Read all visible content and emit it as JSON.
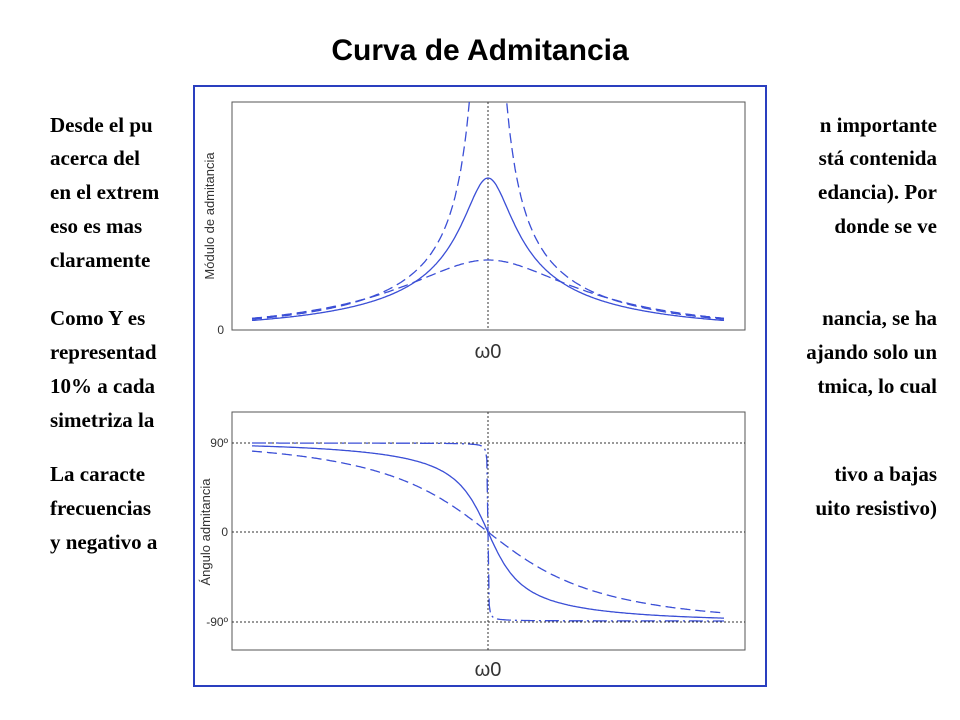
{
  "title": "Curva de Admitancia",
  "paragraphs": [
    {
      "lines": [
        {
          "left": "Desde el pu",
          "right": "n importante"
        },
        {
          "left": "acerca del",
          "right": "stá contenida"
        },
        {
          "left": "en el extrem",
          "right": "edancia). Por"
        },
        {
          "left": "eso es mas",
          "right": "donde se ve"
        },
        {
          "left": "claramente",
          "right": ""
        }
      ]
    },
    {
      "lines": [
        {
          "left": "Como Y es",
          "right": "nancia, se ha"
        },
        {
          "left": "representad",
          "right": "ajando solo un"
        },
        {
          "left": "10% a cada",
          "right": "tmica, lo cual"
        },
        {
          "left": "simetriza la",
          "right": ""
        }
      ]
    },
    {
      "lines": [
        {
          "left": "La caracte",
          "right": "tivo a bajas"
        },
        {
          "left": "frecuencias",
          "right": "uito resistivo)"
        },
        {
          "left": "y negativo a",
          "right": ""
        }
      ]
    }
  ],
  "figure": {
    "top": {
      "ylabel": "Módulo de admitancia",
      "yticks": [
        "0"
      ],
      "xtick": "ω0"
    },
    "bottom": {
      "ylabel": "Ángulo admitancia",
      "yticks": [
        "90º",
        "0",
        "-90º"
      ],
      "xtick": "ω0"
    }
  }
}
